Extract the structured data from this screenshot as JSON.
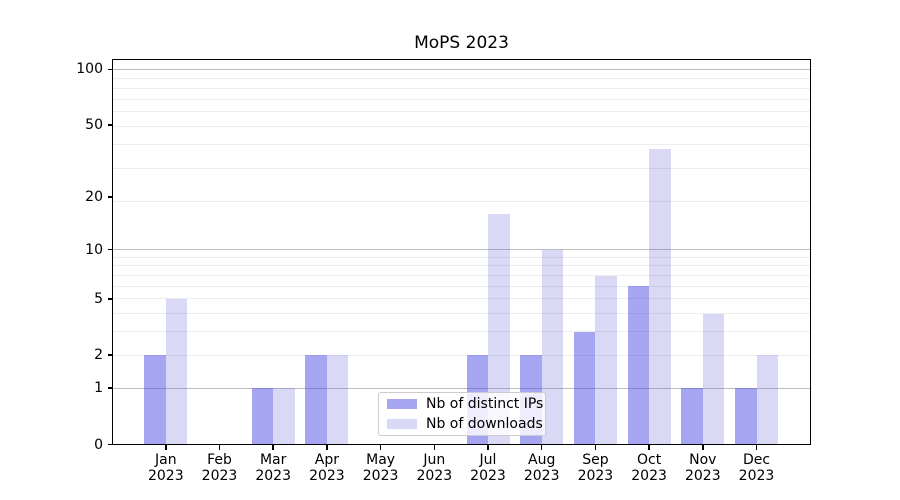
{
  "chart_data": {
    "type": "bar",
    "title": "MoPS 2023",
    "categories": [
      "Jan",
      "Feb",
      "Mar",
      "Apr",
      "May",
      "Jun",
      "Jul",
      "Aug",
      "Sep",
      "Oct",
      "Nov",
      "Dec"
    ],
    "category_year": "2023",
    "series": [
      {
        "name": "Nb of distinct IPs",
        "color": "rgba(75,75,229,0.5)",
        "values": [
          2,
          0,
          1,
          2,
          0,
          0,
          2,
          2,
          3,
          6,
          1,
          1
        ]
      },
      {
        "name": "Nb of downloads",
        "color": "rgba(103,103,219,0.25)",
        "values": [
          5,
          0,
          1,
          2,
          0,
          0,
          16,
          10,
          7,
          37,
          4,
          2
        ]
      }
    ],
    "y_ticks": [
      0,
      1,
      2,
      5,
      10,
      20,
      50,
      100
    ],
    "y_scale": "log10(value+1)",
    "ylim": [
      0,
      115
    ],
    "xlabel": "",
    "ylabel": "",
    "grid": {
      "major_lines": [
        1,
        10,
        100
      ],
      "minor_lines": [
        2,
        3,
        4,
        5,
        6,
        7,
        8,
        9,
        19,
        29,
        39,
        49,
        59,
        69,
        79,
        89
      ],
      "major_color": "#bdbdbd",
      "minor_color": "#ededed"
    },
    "legend_position": "lower center"
  },
  "colors": {
    "background": "#ffffff",
    "spine": "#000000",
    "text": "#000000",
    "legend_border": "#cccccc"
  }
}
